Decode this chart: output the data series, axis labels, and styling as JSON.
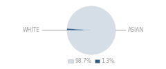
{
  "slices": [
    98.7,
    1.3
  ],
  "labels": [
    "WHITE",
    "ASIAN"
  ],
  "colors": [
    "#d5dde7",
    "#2d5f8a"
  ],
  "legend_colors": [
    "#d5dde7",
    "#2d5f8a"
  ],
  "legend_labels": [
    "98.7%",
    "1.3%"
  ],
  "label_color": "#999999",
  "line_color": "#999999",
  "background_color": "#ffffff",
  "startangle": 180,
  "label_fontsize": 5.5,
  "legend_fontsize": 5.5
}
